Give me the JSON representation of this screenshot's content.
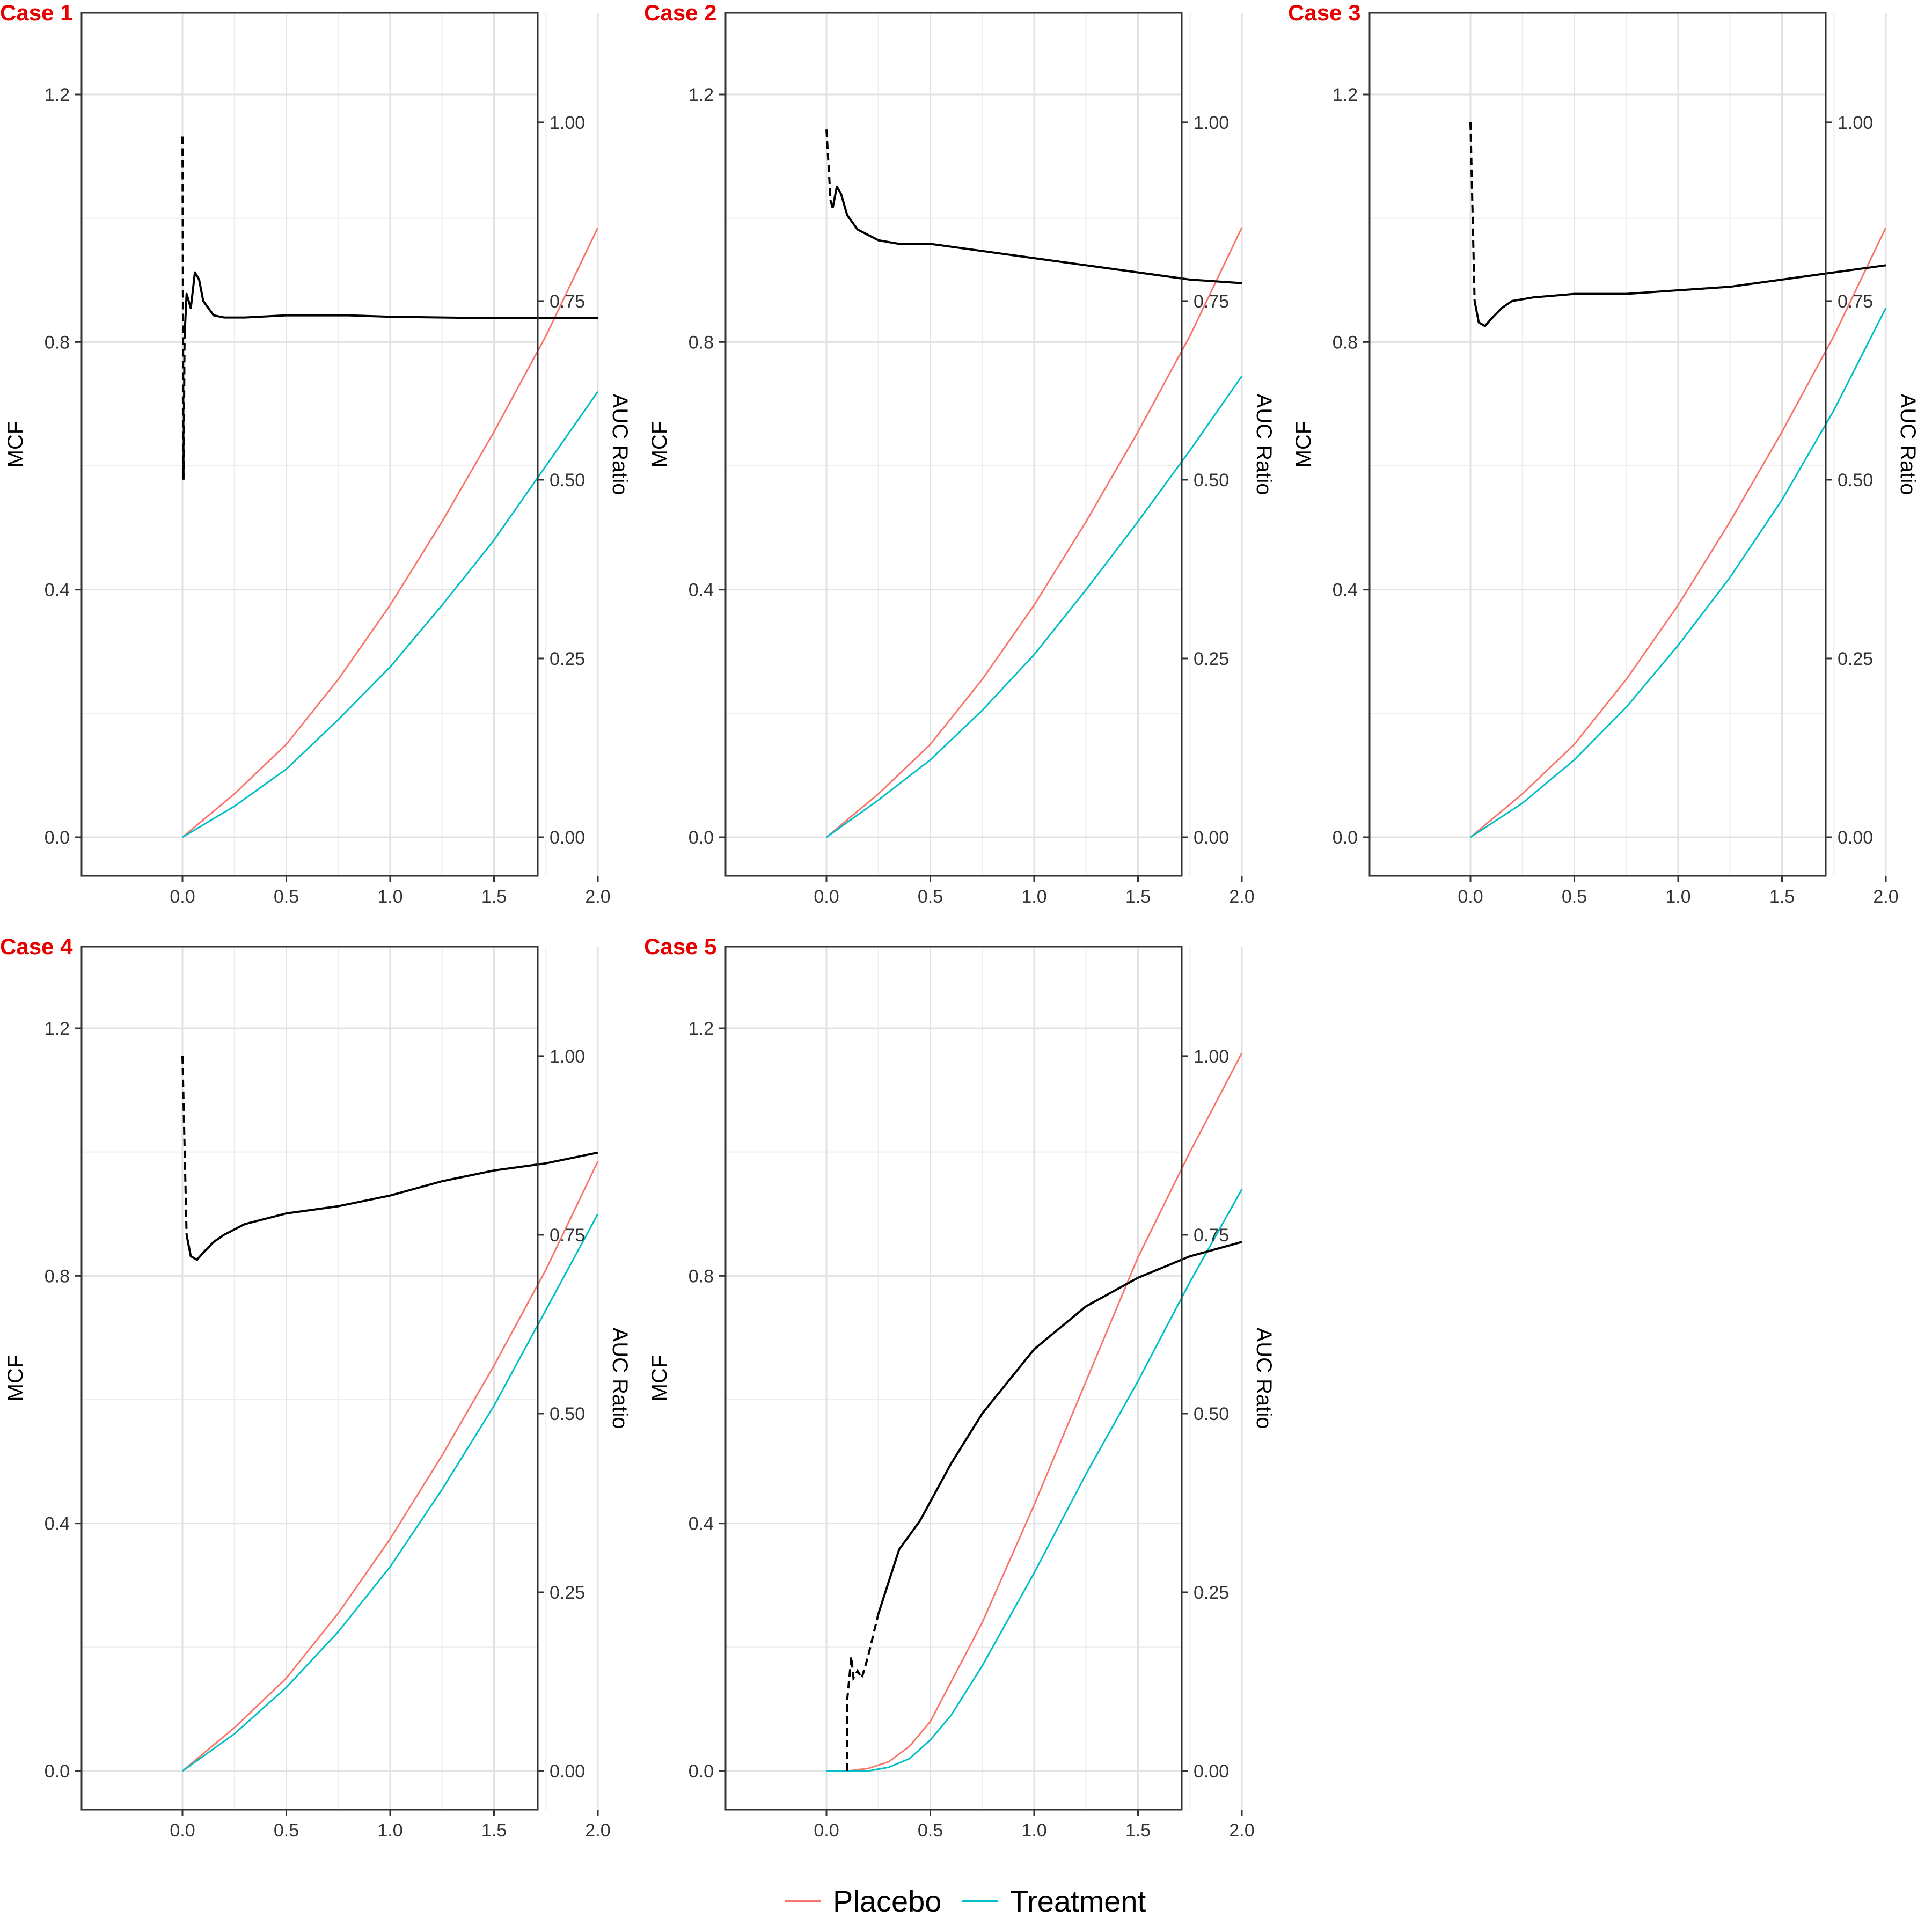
{
  "colors": {
    "placebo": "#F8766D",
    "treatment": "#00BFC4",
    "auc_ratio": "#000000",
    "case_label": "#E60000"
  },
  "legend": {
    "placebo": "Placebo",
    "treatment": "Treatment"
  },
  "chart_data": [
    {
      "type": "line",
      "title": "Case 1",
      "ylabel": "MCF",
      "y2label": "AUC Ratio",
      "xlim": [
        0,
        2
      ],
      "ylim": [
        0,
        1.2
      ],
      "y2lim": [
        0,
        1.0
      ],
      "xticks": [
        "0.0",
        "0.5",
        "1.0",
        "1.5",
        "2.0"
      ],
      "yticks": [
        "0.0",
        "0.4",
        "0.8",
        "1.2"
      ],
      "y2ticks": [
        "0.00",
        "0.25",
        "0.50",
        "0.75",
        "1.00"
      ],
      "grid": true,
      "series": [
        {
          "name": "Placebo",
          "axis": "left",
          "x": [
            0,
            0.25,
            0.5,
            0.75,
            1.0,
            1.25,
            1.5,
            1.75,
            2.0
          ],
          "y": [
            0,
            0.07,
            0.15,
            0.255,
            0.375,
            0.51,
            0.655,
            0.81,
            0.985
          ]
        },
        {
          "name": "Treatment",
          "axis": "left",
          "x": [
            0,
            0.25,
            0.5,
            0.75,
            1.0,
            1.25,
            1.5,
            1.75,
            2.0
          ],
          "y": [
            0,
            0.05,
            0.11,
            0.19,
            0.275,
            0.375,
            0.48,
            0.6,
            0.72
          ]
        },
        {
          "axis": "right",
          "dashed_until": 0.01,
          "x": [
            0,
            0.005,
            0.01,
            0.02,
            0.04,
            0.06,
            0.08,
            0.1,
            0.15,
            0.2,
            0.3,
            0.5,
            0.8,
            1.0,
            1.5,
            2.0
          ],
          "y": [
            0.98,
            0.5,
            0.7,
            0.76,
            0.74,
            0.79,
            0.78,
            0.75,
            0.73,
            0.727,
            0.727,
            0.73,
            0.73,
            0.728,
            0.726,
            0.726
          ]
        }
      ]
    },
    {
      "type": "line",
      "title": "Case 2",
      "ylabel": "MCF",
      "y2label": "AUC Ratio",
      "xlim": [
        0,
        2
      ],
      "ylim": [
        0,
        1.2
      ],
      "y2lim": [
        0,
        1.0
      ],
      "xticks": [
        "0.0",
        "0.5",
        "1.0",
        "1.5",
        "2.0"
      ],
      "yticks": [
        "0.0",
        "0.4",
        "0.8",
        "1.2"
      ],
      "y2ticks": [
        "0.00",
        "0.25",
        "0.50",
        "0.75",
        "1.00"
      ],
      "grid": true,
      "series": [
        {
          "name": "Placebo",
          "axis": "left",
          "x": [
            0,
            0.25,
            0.5,
            0.75,
            1.0,
            1.25,
            1.5,
            1.75,
            2.0
          ],
          "y": [
            0,
            0.07,
            0.15,
            0.255,
            0.375,
            0.51,
            0.655,
            0.81,
            0.985
          ]
        },
        {
          "name": "Treatment",
          "axis": "left",
          "x": [
            0,
            0.25,
            0.5,
            0.75,
            1.0,
            1.25,
            1.5,
            1.75,
            2.0
          ],
          "y": [
            0,
            0.06,
            0.125,
            0.205,
            0.295,
            0.4,
            0.51,
            0.625,
            0.745
          ]
        },
        {
          "axis": "right",
          "dashed_until": 0.03,
          "x": [
            0,
            0.02,
            0.03,
            0.05,
            0.07,
            0.1,
            0.15,
            0.25,
            0.35,
            0.5,
            0.75,
            1.0,
            1.25,
            1.5,
            1.75,
            2.0
          ],
          "y": [
            0.99,
            0.89,
            0.88,
            0.91,
            0.9,
            0.87,
            0.85,
            0.835,
            0.83,
            0.83,
            0.82,
            0.81,
            0.8,
            0.79,
            0.78,
            0.775
          ]
        }
      ]
    },
    {
      "type": "line",
      "title": "Case 3",
      "ylabel": "MCF",
      "y2label": "AUC Ratio",
      "xlim": [
        0,
        2
      ],
      "ylim": [
        0,
        1.2
      ],
      "y2lim": [
        0,
        1.0
      ],
      "xticks": [
        "0.0",
        "0.5",
        "1.0",
        "1.5",
        "2.0"
      ],
      "yticks": [
        "0.0",
        "0.4",
        "0.8",
        "1.2"
      ],
      "y2ticks": [
        "0.00",
        "0.25",
        "0.50",
        "0.75",
        "1.00"
      ],
      "grid": true,
      "series": [
        {
          "name": "Placebo",
          "axis": "left",
          "x": [
            0,
            0.25,
            0.5,
            0.75,
            1.0,
            1.25,
            1.5,
            1.75,
            2.0
          ],
          "y": [
            0,
            0.07,
            0.15,
            0.255,
            0.375,
            0.51,
            0.655,
            0.81,
            0.985
          ]
        },
        {
          "name": "Treatment",
          "axis": "left",
          "x": [
            0,
            0.25,
            0.5,
            0.75,
            1.0,
            1.25,
            1.5,
            1.75,
            2.0
          ],
          "y": [
            0,
            0.055,
            0.125,
            0.21,
            0.31,
            0.42,
            0.545,
            0.69,
            0.855
          ]
        },
        {
          "axis": "right",
          "dashed_until": 0.02,
          "x": [
            0,
            0.02,
            0.04,
            0.07,
            0.1,
            0.15,
            0.2,
            0.3,
            0.5,
            0.75,
            1.0,
            1.25,
            1.5,
            1.75,
            2.0
          ],
          "y": [
            1.0,
            0.75,
            0.72,
            0.715,
            0.725,
            0.74,
            0.75,
            0.755,
            0.76,
            0.76,
            0.765,
            0.77,
            0.78,
            0.79,
            0.8
          ]
        }
      ]
    },
    {
      "type": "line",
      "title": "Case 4",
      "ylabel": "MCF",
      "y2label": "AUC Ratio",
      "xlim": [
        0,
        2
      ],
      "ylim": [
        0,
        1.2
      ],
      "y2lim": [
        0,
        1.0
      ],
      "xticks": [
        "0.0",
        "0.5",
        "1.0",
        "1.5",
        "2.0"
      ],
      "yticks": [
        "0.0",
        "0.4",
        "0.8",
        "1.2"
      ],
      "y2ticks": [
        "0.00",
        "0.25",
        "0.50",
        "0.75",
        "1.00"
      ],
      "grid": true,
      "series": [
        {
          "name": "Placebo",
          "axis": "left",
          "x": [
            0,
            0.25,
            0.5,
            0.75,
            1.0,
            1.25,
            1.5,
            1.75,
            2.0
          ],
          "y": [
            0,
            0.07,
            0.15,
            0.255,
            0.375,
            0.51,
            0.655,
            0.81,
            0.985
          ]
        },
        {
          "name": "Treatment",
          "axis": "left",
          "x": [
            0,
            0.25,
            0.5,
            0.75,
            1.0,
            1.25,
            1.5,
            1.75,
            2.0
          ],
          "y": [
            0,
            0.06,
            0.135,
            0.225,
            0.33,
            0.455,
            0.59,
            0.745,
            0.9
          ]
        },
        {
          "axis": "right",
          "dashed_until": 0.02,
          "x": [
            0,
            0.02,
            0.04,
            0.07,
            0.1,
            0.15,
            0.2,
            0.3,
            0.5,
            0.75,
            1.0,
            1.25,
            1.5,
            1.75,
            2.0
          ],
          "y": [
            1.0,
            0.75,
            0.72,
            0.715,
            0.725,
            0.74,
            0.75,
            0.765,
            0.78,
            0.79,
            0.805,
            0.825,
            0.84,
            0.85,
            0.865
          ]
        }
      ]
    },
    {
      "type": "line",
      "title": "Case 5",
      "ylabel": "MCF",
      "y2label": "AUC Ratio",
      "xlim": [
        0,
        2
      ],
      "ylim": [
        0,
        1.2
      ],
      "y2lim": [
        0,
        1.0
      ],
      "xticks": [
        "0.0",
        "0.5",
        "1.0",
        "1.5",
        "2.0"
      ],
      "yticks": [
        "0.0",
        "0.4",
        "0.8",
        "1.2"
      ],
      "y2ticks": [
        "0.00",
        "0.25",
        "0.50",
        "0.75",
        "1.00"
      ],
      "grid": true,
      "series": [
        {
          "name": "Placebo",
          "axis": "left",
          "x": [
            0,
            0.1,
            0.2,
            0.3,
            0.4,
            0.5,
            0.75,
            1.0,
            1.25,
            1.5,
            1.75,
            2.0
          ],
          "y": [
            0,
            0,
            0.004,
            0.015,
            0.04,
            0.08,
            0.24,
            0.43,
            0.63,
            0.83,
            1.0,
            1.16
          ]
        },
        {
          "name": "Treatment",
          "axis": "left",
          "x": [
            0,
            0.2,
            0.3,
            0.4,
            0.5,
            0.6,
            0.75,
            1.0,
            1.25,
            1.5,
            1.75,
            2.0
          ],
          "y": [
            0,
            0,
            0.006,
            0.02,
            0.05,
            0.09,
            0.17,
            0.32,
            0.48,
            0.63,
            0.79,
            0.94
          ]
        },
        {
          "axis": "right",
          "dashed_until": 0.25,
          "x": [
            0.1,
            0.1,
            0.12,
            0.13,
            0.15,
            0.17,
            0.2,
            0.25,
            0.35,
            0.45,
            0.6,
            0.75,
            1.0,
            1.25,
            1.5,
            1.75,
            2.0
          ],
          "y": [
            0,
            0.1,
            0.16,
            0.13,
            0.14,
            0.13,
            0.16,
            0.22,
            0.31,
            0.35,
            0.43,
            0.5,
            0.59,
            0.65,
            0.69,
            0.72,
            0.74
          ]
        }
      ]
    }
  ]
}
